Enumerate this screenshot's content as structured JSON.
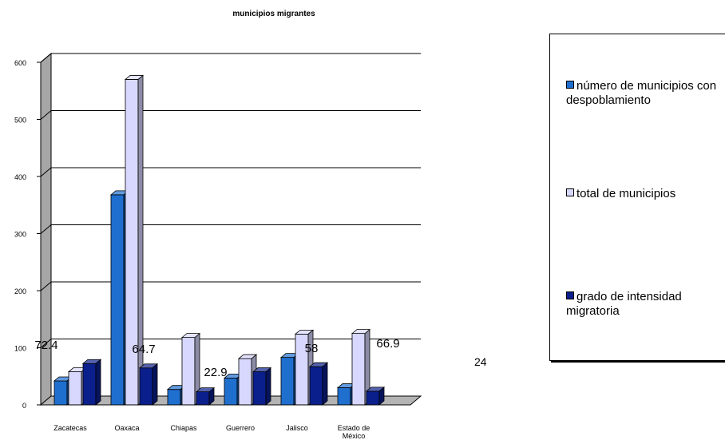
{
  "chart_data": {
    "type": "bar",
    "title": "municipios migrantes",
    "categories": [
      "Zacatecas",
      "Oaxaca",
      "Chiapas",
      "Guerrero",
      "Jalisco",
      "Estado de México"
    ],
    "series": [
      {
        "name": "número de municipios con despoblamiento",
        "values": [
          42,
          368,
          27,
          47,
          83,
          30
        ],
        "color": "#1f6fcf"
      },
      {
        "name": "total de municipios",
        "values": [
          58,
          570,
          118,
          81,
          124,
          125
        ],
        "color": "#d8d8ff"
      },
      {
        "name": "grado de intensidad migratoria",
        "values": [
          72.4,
          64.7,
          22.9,
          58,
          66.9,
          24
        ],
        "color": "#0a1f8c"
      }
    ],
    "yticks": [
      "0",
      "100",
      "200",
      "300",
      "400",
      "500",
      "600"
    ],
    "ylim": [
      0,
      600
    ],
    "grid": true,
    "legend_position": "right",
    "data_labels": [
      "72.4",
      "64.7",
      "22.9",
      "58",
      "66.9"
    ]
  },
  "side_label": "24"
}
